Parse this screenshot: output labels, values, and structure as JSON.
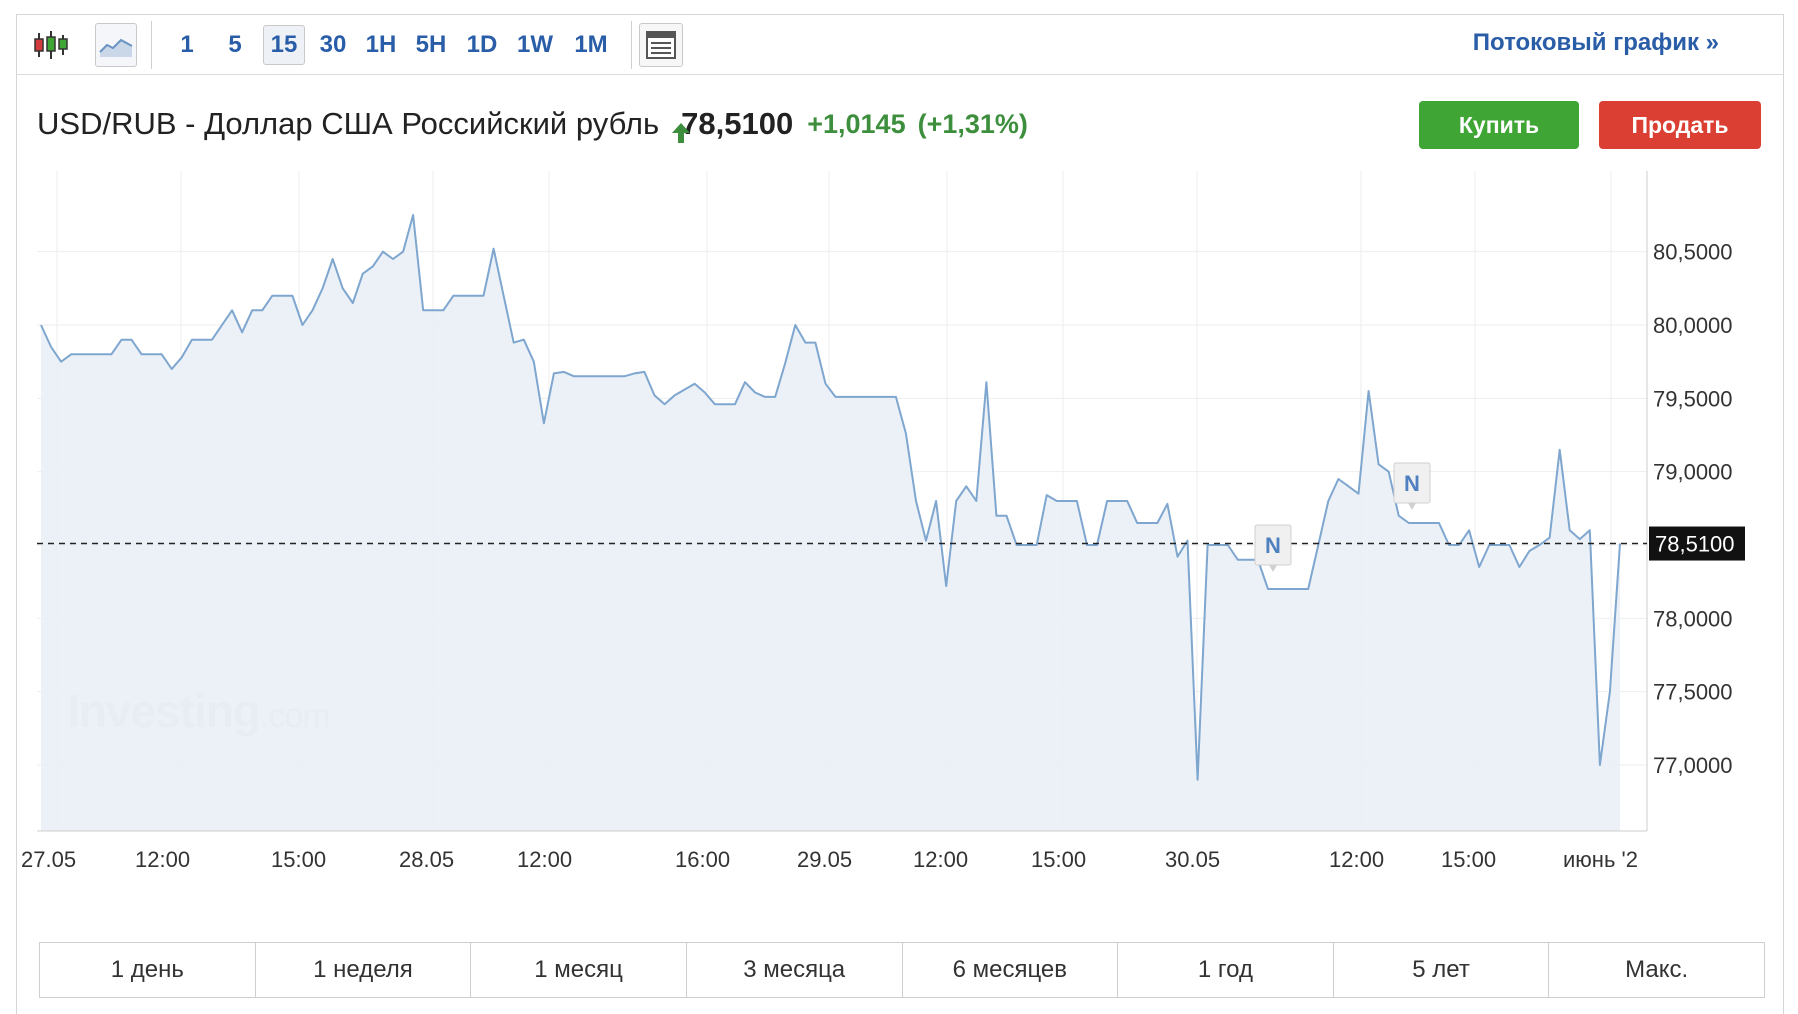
{
  "toolbar": {
    "timeframes": [
      "1",
      "5",
      "15",
      "30",
      "1H",
      "5H",
      "1D",
      "1W",
      "1M"
    ],
    "active_timeframe": "15",
    "stream_link": "Потоковый график »",
    "icons": [
      "candlestick-chart-icon",
      "area-chart-icon",
      "news-layout-icon"
    ]
  },
  "header": {
    "pair_title": "USD/RUB - Доллар США Российский рубль",
    "price": "78,5100",
    "change": "+1,0145",
    "change_pct": "(+1,31%)",
    "buy_label": "Купить",
    "sell_label": "Продать"
  },
  "colors": {
    "line": "#7ea6cf",
    "area": "#e9eff6",
    "positive": "#3d8f3d",
    "buy": "#3fa535",
    "sell": "#db3f33",
    "link": "#2a5da8"
  },
  "watermark": {
    "main": "Investing",
    "suffix": ".com"
  },
  "ranges": [
    "1 день",
    "1 неделя",
    "1 месяц",
    "3 месяца",
    "6 месяцев",
    "1 год",
    "5 лет",
    "Макс."
  ],
  "chart_data": {
    "type": "area",
    "series": [
      {
        "values": [
          80.0,
          79.85,
          79.75,
          79.8,
          79.8,
          79.8,
          79.8,
          79.8,
          79.9,
          79.9,
          79.8,
          79.8,
          79.8,
          79.7,
          79.78,
          79.9,
          79.9,
          79.9,
          80.0,
          80.1,
          79.95,
          80.1,
          80.1,
          80.2,
          80.2,
          80.2,
          80.0,
          80.1,
          80.25,
          80.45,
          80.25,
          80.15,
          80.35,
          80.4,
          80.5,
          80.45,
          80.5,
          80.75,
          80.1,
          80.1,
          80.1,
          80.2,
          80.2,
          80.2,
          80.2,
          80.52,
          80.2,
          79.88,
          79.9,
          79.75,
          79.33,
          79.67,
          79.68,
          79.65,
          79.65,
          79.65,
          79.65,
          79.65,
          79.65,
          79.67,
          79.68,
          79.52,
          79.46,
          79.52,
          79.56,
          79.6,
          79.54,
          79.46,
          79.46,
          79.46,
          79.61,
          79.54,
          79.51,
          79.51,
          79.74,
          80.0,
          79.88,
          79.88,
          79.6,
          79.51,
          79.51,
          79.51,
          79.51,
          79.51,
          79.51,
          79.51,
          79.26,
          78.8,
          78.53,
          78.8,
          78.22,
          78.8,
          78.9,
          78.8,
          79.61,
          78.7,
          78.7,
          78.5,
          78.5,
          78.5,
          78.84,
          78.8,
          78.8,
          78.8,
          78.5,
          78.5,
          78.8,
          78.8,
          78.8,
          78.65,
          78.65,
          78.65,
          78.78,
          78.42,
          78.53,
          76.9,
          78.5,
          78.5,
          78.5,
          78.4,
          78.4,
          78.4,
          78.2,
          78.2,
          78.2,
          78.2,
          78.2,
          78.5,
          78.8,
          78.95,
          78.9,
          78.85,
          79.55,
          79.05,
          79.0,
          78.7,
          78.65,
          78.65,
          78.65,
          78.65,
          78.5,
          78.5,
          78.6,
          78.35,
          78.5,
          78.5,
          78.5,
          78.35,
          78.46,
          78.5,
          78.55,
          79.15,
          78.6,
          78.54,
          78.6,
          77.0,
          77.5,
          78.51
        ]
      }
    ],
    "last_value": 78.51,
    "last_value_label": "78,5100",
    "y_ticks": [
      80.5,
      80.0,
      79.5,
      79.0,
      78.5,
      78.0,
      77.5,
      77.0
    ],
    "y_tick_labels": [
      "80,5000",
      "80,0000",
      "79,5000",
      "79,0000",
      "",
      "78,0000",
      "77,5000",
      "77,0000"
    ],
    "ylim": [
      76.55,
      81.05
    ],
    "x_tick_labels": [
      "27.05",
      "12:00",
      "15:00",
      "28.05",
      "12:00",
      "16:00",
      "29.05",
      "12:00",
      "15:00",
      "30.05",
      "12:00",
      "15:00",
      "июнь '2"
    ],
    "news_markers": [
      "N",
      "N"
    ],
    "grid": true,
    "price_axis": "right"
  }
}
